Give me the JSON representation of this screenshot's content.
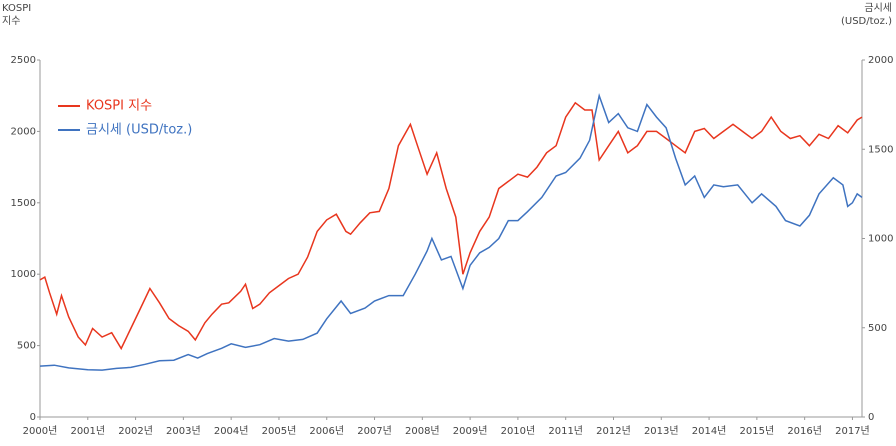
{
  "chart_data": {
    "type": "line",
    "ylabel": [
      "KOSPI",
      "지수"
    ],
    "y2label": [
      "금시세",
      "(USD/toz.)"
    ],
    "xlim": [
      2000,
      2017.2
    ],
    "xticks": [
      {
        "value": 2000,
        "label": "2000년"
      },
      {
        "value": 2001,
        "label": "2001년"
      },
      {
        "value": 2002,
        "label": "2002년"
      },
      {
        "value": 2003,
        "label": "2003년"
      },
      {
        "value": 2004,
        "label": "2004년"
      },
      {
        "value": 2005,
        "label": "2005년"
      },
      {
        "value": 2006,
        "label": "2006년"
      },
      {
        "value": 2007,
        "label": "2007년"
      },
      {
        "value": 2008,
        "label": "2008년"
      },
      {
        "value": 2009,
        "label": "2009년"
      },
      {
        "value": 2010,
        "label": "2010년"
      },
      {
        "value": 2011,
        "label": "2011년"
      },
      {
        "value": 2012,
        "label": "2012년"
      },
      {
        "value": 2013,
        "label": "2013년"
      },
      {
        "value": 2014,
        "label": "2014년"
      },
      {
        "value": 2015,
        "label": "2015년"
      },
      {
        "value": 2016,
        "label": "2016년"
      },
      {
        "value": 2017,
        "label": "2017년"
      }
    ],
    "ylim": [
      0,
      2500
    ],
    "yticks": [
      0,
      500,
      1000,
      1500,
      2000,
      2500
    ],
    "y2lim": [
      0,
      2000
    ],
    "y2ticks": [
      0,
      500,
      1000,
      1500,
      2000
    ],
    "legend": "upper-left",
    "series": [
      {
        "name": "KOSPI 지수",
        "color": "#e8361e",
        "x": [
          2000.0,
          2000.1,
          2000.2,
          2000.35,
          2000.45,
          2000.6,
          2000.8,
          2000.95,
          2001.1,
          2001.3,
          2001.5,
          2001.7,
          2001.9,
          2002.1,
          2002.3,
          2002.5,
          2002.7,
          2002.9,
          2003.1,
          2003.25,
          2003.45,
          2003.6,
          2003.8,
          2003.95,
          2004.2,
          2004.3,
          2004.45,
          2004.6,
          2004.8,
          2005.0,
          2005.2,
          2005.4,
          2005.6,
          2005.8,
          2006.0,
          2006.2,
          2006.4,
          2006.5,
          2006.7,
          2006.9,
          2007.1,
          2007.3,
          2007.5,
          2007.75,
          2007.9,
          2008.1,
          2008.3,
          2008.5,
          2008.7,
          2008.85,
          2009.0,
          2009.2,
          2009.4,
          2009.6,
          2009.8,
          2010.0,
          2010.2,
          2010.4,
          2010.6,
          2010.8,
          2011.0,
          2011.2,
          2011.4,
          2011.55,
          2011.7,
          2011.9,
          2012.1,
          2012.3,
          2012.5,
          2012.7,
          2012.9,
          2013.1,
          2013.3,
          2013.5,
          2013.7,
          2013.9,
          2014.1,
          2014.3,
          2014.5,
          2014.7,
          2014.9,
          2015.1,
          2015.3,
          2015.5,
          2015.7,
          2015.9,
          2016.1,
          2016.3,
          2016.5,
          2016.7,
          2016.9,
          2017.1,
          2017.2
        ],
        "values": [
          960,
          980,
          870,
          720,
          850,
          700,
          560,
          505,
          620,
          560,
          590,
          480,
          620,
          760,
          900,
          800,
          690,
          640,
          600,
          540,
          660,
          720,
          790,
          800,
          880,
          930,
          760,
          790,
          870,
          920,
          970,
          1000,
          1120,
          1300,
          1380,
          1420,
          1300,
          1280,
          1360,
          1430,
          1440,
          1600,
          1900,
          2050,
          1900,
          1700,
          1850,
          1600,
          1400,
          1000,
          1150,
          1300,
          1400,
          1600,
          1650,
          1700,
          1680,
          1750,
          1850,
          1900,
          2100,
          2200,
          2150,
          2150,
          1800,
          1900,
          2000,
          1850,
          1900,
          2000,
          2000,
          1950,
          1900,
          1850,
          2000,
          2020,
          1950,
          2000,
          2050,
          2000,
          1950,
          2000,
          2100,
          2000,
          1950,
          1970,
          1900,
          1980,
          1950,
          2040,
          1990,
          2080,
          2100
        ]
      },
      {
        "name": "금시세 (USD/toz.)",
        "color": "#3f73c0",
        "axis": "y2",
        "x": [
          2000.0,
          2000.3,
          2000.6,
          2001.0,
          2001.3,
          2001.6,
          2001.9,
          2002.2,
          2002.5,
          2002.8,
          2003.1,
          2003.3,
          2003.5,
          2003.8,
          2004.0,
          2004.3,
          2004.6,
          2004.9,
          2005.2,
          2005.5,
          2005.8,
          2006.0,
          2006.3,
          2006.5,
          2006.8,
          2007.0,
          2007.3,
          2007.6,
          2007.85,
          2008.1,
          2008.2,
          2008.4,
          2008.6,
          2008.85,
          2009.0,
          2009.2,
          2009.4,
          2009.6,
          2009.8,
          2010.0,
          2010.2,
          2010.5,
          2010.8,
          2011.0,
          2011.3,
          2011.5,
          2011.7,
          2011.9,
          2012.1,
          2012.3,
          2012.5,
          2012.7,
          2012.9,
          2013.1,
          2013.3,
          2013.5,
          2013.7,
          2013.9,
          2014.1,
          2014.3,
          2014.6,
          2014.9,
          2015.1,
          2015.4,
          2015.6,
          2015.9,
          2016.1,
          2016.3,
          2016.6,
          2016.8,
          2016.9,
          2017.0,
          2017.1,
          2017.2
        ],
        "values": [
          285,
          290,
          275,
          265,
          263,
          272,
          278,
          295,
          315,
          318,
          350,
          330,
          355,
          385,
          410,
          390,
          405,
          440,
          425,
          435,
          470,
          550,
          650,
          580,
          610,
          650,
          680,
          680,
          800,
          930,
          1000,
          880,
          900,
          720,
          850,
          920,
          950,
          1000,
          1100,
          1100,
          1150,
          1230,
          1350,
          1370,
          1450,
          1550,
          1800,
          1650,
          1700,
          1620,
          1600,
          1750,
          1680,
          1620,
          1450,
          1300,
          1350,
          1230,
          1300,
          1290,
          1300,
          1200,
          1250,
          1180,
          1100,
          1070,
          1130,
          1250,
          1340,
          1300,
          1180,
          1200,
          1250,
          1230
        ]
      }
    ]
  }
}
